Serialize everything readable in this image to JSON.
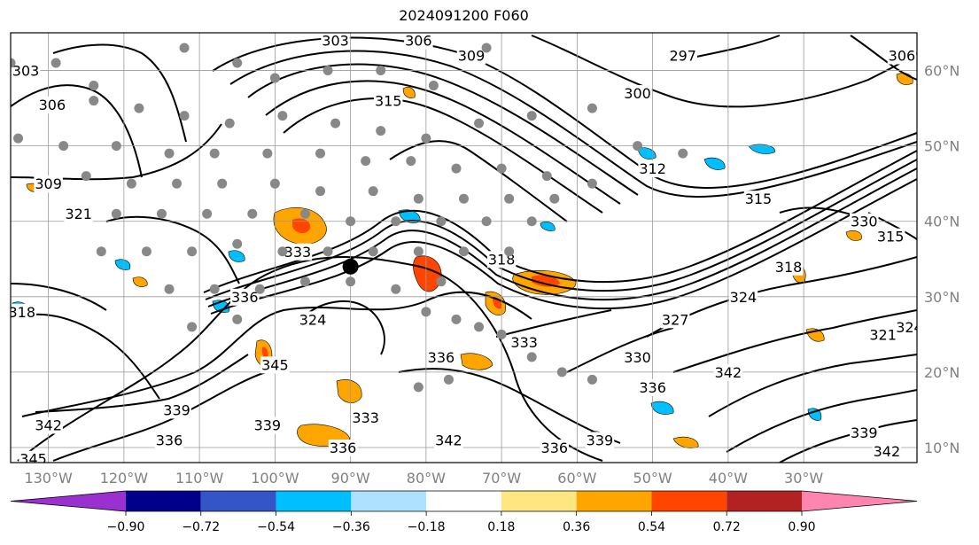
{
  "title": "2024091200 F060",
  "map": {
    "lon_ticks": [
      "130°W",
      "120°W",
      "110°W",
      "100°W",
      "90°W",
      "80°W",
      "70°W",
      "60°W",
      "50°W",
      "40°W",
      "30°W"
    ],
    "lat_ticks": [
      "60°N",
      "50°N",
      "40°N",
      "30°N",
      "20°N",
      "10°N"
    ],
    "lon_range": [
      -135,
      -15
    ],
    "lat_range": [
      8,
      65
    ],
    "grid": true
  },
  "contour_labels": [
    {
      "text": "303",
      "lon": -133,
      "lat": 60
    },
    {
      "text": "306",
      "lon": -129.5,
      "lat": 55.5
    },
    {
      "text": "309",
      "lon": -130,
      "lat": 45
    },
    {
      "text": "321",
      "lon": -126,
      "lat": 41
    },
    {
      "text": "318",
      "lon": -133.5,
      "lat": 28
    },
    {
      "text": "342",
      "lon": -130,
      "lat": 13
    },
    {
      "text": "345",
      "lon": -132,
      "lat": 8.5
    },
    {
      "text": "339",
      "lon": -113,
      "lat": 15
    },
    {
      "text": "336",
      "lon": -114,
      "lat": 11
    },
    {
      "text": "339",
      "lon": -101,
      "lat": 13
    },
    {
      "text": "345",
      "lon": -100,
      "lat": 21
    },
    {
      "text": "336",
      "lon": -104,
      "lat": 30
    },
    {
      "text": "324",
      "lon": -95,
      "lat": 27
    },
    {
      "text": "333",
      "lon": -97,
      "lat": 36
    },
    {
      "text": "315",
      "lon": -85,
      "lat": 56
    },
    {
      "text": "303",
      "lon": -92,
      "lat": 64
    },
    {
      "text": "306",
      "lon": -81,
      "lat": 64
    },
    {
      "text": "309",
      "lon": -74,
      "lat": 62
    },
    {
      "text": "300",
      "lon": -52,
      "lat": 57
    },
    {
      "text": "297",
      "lon": -46,
      "lat": 62
    },
    {
      "text": "312",
      "lon": -50,
      "lat": 47
    },
    {
      "text": "315",
      "lon": -36,
      "lat": 43
    },
    {
      "text": "318",
      "lon": -70,
      "lat": 35
    },
    {
      "text": "330",
      "lon": -22,
      "lat": 40
    },
    {
      "text": "315",
      "lon": -18.5,
      "lat": 38
    },
    {
      "text": "306",
      "lon": -17,
      "lat": 62
    },
    {
      "text": "318",
      "lon": -32,
      "lat": 34
    },
    {
      "text": "324",
      "lon": -38,
      "lat": 30
    },
    {
      "text": "327",
      "lon": -47,
      "lat": 27
    },
    {
      "text": "321",
      "lon": -19.5,
      "lat": 25
    },
    {
      "text": "324",
      "lon": -16,
      "lat": 26
    },
    {
      "text": "333",
      "lon": -67,
      "lat": 24
    },
    {
      "text": "330",
      "lon": -52,
      "lat": 22
    },
    {
      "text": "336",
      "lon": -50,
      "lat": 18
    },
    {
      "text": "342",
      "lon": -40,
      "lat": 20
    },
    {
      "text": "336",
      "lon": -78,
      "lat": 22
    },
    {
      "text": "333",
      "lon": -88,
      "lat": 14
    },
    {
      "text": "336",
      "lon": -91,
      "lat": 10
    },
    {
      "text": "342",
      "lon": -77,
      "lat": 11
    },
    {
      "text": "336",
      "lon": -63,
      "lat": 10
    },
    {
      "text": "339",
      "lon": -57,
      "lat": 11
    },
    {
      "text": "339",
      "lon": -22,
      "lat": 12
    },
    {
      "text": "342",
      "lon": -19,
      "lat": 9.5
    }
  ],
  "colorbar": {
    "ticks": [
      "−0.90",
      "−0.72",
      "−0.54",
      "−0.36",
      "−0.18",
      "0.18",
      "0.36",
      "0.54",
      "0.72",
      "0.90"
    ],
    "bins": [
      {
        "color": "#9b30d0"
      },
      {
        "color": "#00008b"
      },
      {
        "color": "#3355c8"
      },
      {
        "color": "#00bfff"
      },
      {
        "color": "#aee1ff"
      },
      {
        "color": "#ffffff"
      },
      {
        "color": "#ffe680"
      },
      {
        "color": "#ffa500"
      },
      {
        "color": "#ff4500"
      },
      {
        "color": "#b22222"
      },
      {
        "color": "#ff85b0"
      }
    ]
  },
  "colors": {
    "orange": "#ffa500",
    "red": "#ff4500",
    "blue": "#00bfff",
    "marker_gray": "#888888"
  },
  "markers": {
    "gray_dots": [
      [
        -135,
        61
      ],
      [
        -129,
        61
      ],
      [
        -124,
        58
      ],
      [
        -112,
        63
      ],
      [
        -105,
        61
      ],
      [
        -100,
        59
      ],
      [
        -93,
        60
      ],
      [
        -86,
        60
      ],
      [
        -79,
        58
      ],
      [
        -72,
        63
      ],
      [
        -66,
        54
      ],
      [
        -58,
        55
      ],
      [
        -52,
        50
      ],
      [
        -46,
        49
      ],
      [
        -124,
        56
      ],
      [
        -118,
        55
      ],
      [
        -112,
        54
      ],
      [
        -106,
        53
      ],
      [
        -99,
        54
      ],
      [
        -92,
        53
      ],
      [
        -86,
        52
      ],
      [
        -80,
        51
      ],
      [
        -73,
        53
      ],
      [
        -134,
        51
      ],
      [
        -128,
        50
      ],
      [
        -121,
        50
      ],
      [
        -114,
        49
      ],
      [
        -108,
        49
      ],
      [
        -101,
        49
      ],
      [
        -94,
        49
      ],
      [
        -88,
        48
      ],
      [
        -82,
        48
      ],
      [
        -76,
        47
      ],
      [
        -70,
        47
      ],
      [
        -64,
        46
      ],
      [
        -58,
        45
      ],
      [
        -125,
        46
      ],
      [
        -119,
        45
      ],
      [
        -113,
        45
      ],
      [
        -107,
        45
      ],
      [
        -100,
        45
      ],
      [
        -94,
        44
      ],
      [
        -87,
        44
      ],
      [
        -81,
        43
      ],
      [
        -75,
        43
      ],
      [
        -69,
        43
      ],
      [
        -63,
        43
      ],
      [
        -121,
        41
      ],
      [
        -115,
        41
      ],
      [
        -109,
        41
      ],
      [
        -103,
        41
      ],
      [
        -96,
        41
      ],
      [
        -90,
        40
      ],
      [
        -84,
        40
      ],
      [
        -78,
        40
      ],
      [
        -72,
        40
      ],
      [
        -66,
        40
      ],
      [
        -123,
        36
      ],
      [
        -117,
        36
      ],
      [
        -111,
        36
      ],
      [
        -105,
        37
      ],
      [
        -99,
        36
      ],
      [
        -93,
        36
      ],
      [
        -87,
        36
      ],
      [
        -81,
        36
      ],
      [
        -75,
        36
      ],
      [
        -69,
        36
      ],
      [
        -114,
        31
      ],
      [
        -108,
        31
      ],
      [
        -102,
        31
      ],
      [
        -96,
        32
      ],
      [
        -90,
        32
      ],
      [
        -84,
        31
      ],
      [
        -78,
        32
      ],
      [
        -111,
        26
      ],
      [
        -105,
        27
      ],
      [
        -80,
        28
      ],
      [
        -76,
        27
      ],
      [
        -73,
        26
      ],
      [
        -70,
        25
      ],
      [
        -66,
        22
      ],
      [
        -62,
        20
      ],
      [
        -58,
        19
      ],
      [
        -77,
        19
      ],
      [
        -81,
        18
      ]
    ],
    "black_dot": {
      "lon": -90,
      "lat": 34
    }
  }
}
